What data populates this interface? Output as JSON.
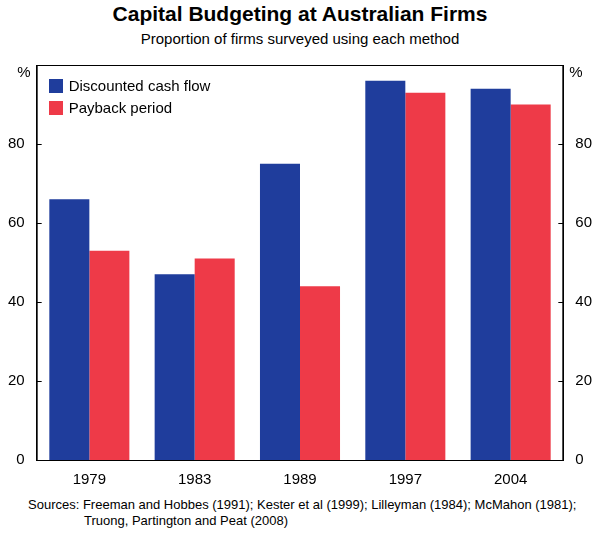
{
  "chart_data": {
    "type": "bar",
    "title": "Capital Budgeting at Australian Firms",
    "subtitle": "Proportion of firms surveyed using each method",
    "y_label": "%",
    "categories": [
      "1979",
      "1983",
      "1989",
      "1997",
      "2004"
    ],
    "series": [
      {
        "name": "Discounted cash flow",
        "color": "#1f3d9c",
        "values": [
          66,
          47,
          75,
          96,
          94
        ]
      },
      {
        "name": "Payback period",
        "color": "#ee3a48",
        "values": [
          53,
          51,
          44,
          93,
          90
        ]
      }
    ],
    "ylim": [
      0,
      100
    ],
    "yticks": [
      0,
      20,
      40,
      60,
      80
    ],
    "grid": false,
    "legend": "top-left",
    "footnote": "Sources:   Freeman and Hobbes (1991); Kester et al (1999); Lilleyman (1984); McMahon (1981); Truong, Partington and Peat (2008)"
  }
}
